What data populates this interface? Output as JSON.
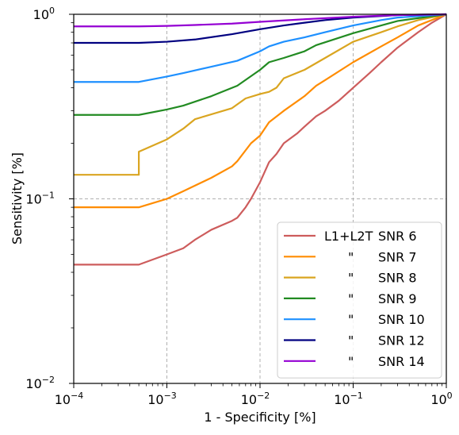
{
  "chart_data": {
    "type": "line",
    "xlabel": "1 - Specificity [%]",
    "ylabel": "Sensitivity [%]",
    "xscale": "log",
    "yscale": "log",
    "xlim": [
      0.0001,
      1
    ],
    "ylim": [
      0.01,
      1
    ],
    "grid": "major, dashed",
    "legend_position": "lower-right",
    "x_ticks": [
      {
        "value": 0.0001,
        "label": "10^-4"
      },
      {
        "value": 0.001,
        "label": "10^-3"
      },
      {
        "value": 0.01,
        "label": "10^-2"
      },
      {
        "value": 0.1,
        "label": "10^-1"
      },
      {
        "value": 1,
        "label": "10^0"
      }
    ],
    "y_ticks": [
      {
        "value": 0.01,
        "label": "10^-2"
      },
      {
        "value": 0.1,
        "label": "10^-1"
      },
      {
        "value": 1,
        "label": "10^0"
      }
    ],
    "series": [
      {
        "name": "L1+L2T  SNR 6",
        "legend_prefix": "L1+L2T",
        "legend_snr": "SNR 6",
        "color": "#cd5c5c",
        "points": [
          [
            0.0001,
            0.044
          ],
          [
            0.0005,
            0.044
          ],
          [
            0.001,
            0.05
          ],
          [
            0.0015,
            0.054
          ],
          [
            0.002,
            0.06
          ],
          [
            0.003,
            0.068
          ],
          [
            0.005,
            0.076
          ],
          [
            0.0057,
            0.079
          ],
          [
            0.007,
            0.09
          ],
          [
            0.008,
            0.1
          ],
          [
            0.01,
            0.123
          ],
          [
            0.0125,
            0.158
          ],
          [
            0.015,
            0.175
          ],
          [
            0.018,
            0.2
          ],
          [
            0.025,
            0.226
          ],
          [
            0.03,
            0.246
          ],
          [
            0.04,
            0.28
          ],
          [
            0.05,
            0.3
          ],
          [
            0.07,
            0.34
          ],
          [
            0.1,
            0.4
          ],
          [
            0.15,
            0.48
          ],
          [
            0.2,
            0.55
          ],
          [
            0.3,
            0.66
          ],
          [
            0.5,
            0.8
          ],
          [
            0.7,
            0.9
          ],
          [
            1,
            1
          ]
        ]
      },
      {
        "name": "SNR 7",
        "legend_prefix": "\"",
        "legend_snr": "SNR 7",
        "color": "#ff8c00",
        "points": [
          [
            0.0001,
            0.09
          ],
          [
            0.0005,
            0.09
          ],
          [
            0.001,
            0.1
          ],
          [
            0.0015,
            0.11
          ],
          [
            0.003,
            0.13
          ],
          [
            0.005,
            0.15
          ],
          [
            0.0057,
            0.16
          ],
          [
            0.008,
            0.2
          ],
          [
            0.01,
            0.22
          ],
          [
            0.0125,
            0.26
          ],
          [
            0.018,
            0.3
          ],
          [
            0.03,
            0.36
          ],
          [
            0.04,
            0.41
          ],
          [
            0.05,
            0.44
          ],
          [
            0.1,
            0.55
          ],
          [
            0.2,
            0.67
          ],
          [
            0.3,
            0.75
          ],
          [
            0.5,
            0.87
          ],
          [
            1,
            1
          ]
        ]
      },
      {
        "name": "SNR 8",
        "legend_prefix": "\"",
        "legend_snr": "SNR 8",
        "color": "#daa520",
        "points": [
          [
            0.0001,
            0.135
          ],
          [
            0.0005,
            0.135
          ],
          [
            0.0005,
            0.18
          ],
          [
            0.001,
            0.21
          ],
          [
            0.0015,
            0.24
          ],
          [
            0.002,
            0.27
          ],
          [
            0.005,
            0.31
          ],
          [
            0.007,
            0.35
          ],
          [
            0.01,
            0.37
          ],
          [
            0.0125,
            0.38
          ],
          [
            0.015,
            0.4
          ],
          [
            0.018,
            0.45
          ],
          [
            0.03,
            0.5
          ],
          [
            0.05,
            0.58
          ],
          [
            0.1,
            0.71
          ],
          [
            0.2,
            0.8
          ],
          [
            0.3,
            0.86
          ],
          [
            0.5,
            0.93
          ],
          [
            1,
            1
          ]
        ]
      },
      {
        "name": "SNR 9",
        "legend_prefix": "\"",
        "legend_snr": "SNR 9",
        "color": "#228b22",
        "points": [
          [
            0.0001,
            0.285
          ],
          [
            0.0005,
            0.285
          ],
          [
            0.001,
            0.305
          ],
          [
            0.0015,
            0.32
          ],
          [
            0.003,
            0.36
          ],
          [
            0.0057,
            0.41
          ],
          [
            0.01,
            0.5
          ],
          [
            0.0125,
            0.55
          ],
          [
            0.018,
            0.58
          ],
          [
            0.03,
            0.63
          ],
          [
            0.04,
            0.68
          ],
          [
            0.1,
            0.79
          ],
          [
            0.2,
            0.87
          ],
          [
            0.3,
            0.92
          ],
          [
            1,
            1
          ]
        ]
      },
      {
        "name": "SNR 10",
        "legend_prefix": "\"",
        "legend_snr": "SNR 10",
        "color": "#1e90ff",
        "points": [
          [
            0.0001,
            0.43
          ],
          [
            0.0005,
            0.43
          ],
          [
            0.001,
            0.46
          ],
          [
            0.0015,
            0.48
          ],
          [
            0.003,
            0.52
          ],
          [
            0.0057,
            0.56
          ],
          [
            0.01,
            0.63
          ],
          [
            0.0125,
            0.67
          ],
          [
            0.018,
            0.71
          ],
          [
            0.03,
            0.75
          ],
          [
            0.05,
            0.8
          ],
          [
            0.1,
            0.87
          ],
          [
            0.2,
            0.93
          ],
          [
            0.3,
            0.96
          ],
          [
            1,
            1
          ]
        ]
      },
      {
        "name": "SNR 12",
        "legend_prefix": "\"",
        "legend_snr": "SNR 12",
        "color": "#000080",
        "points": [
          [
            0.0001,
            0.7
          ],
          [
            0.0005,
            0.7
          ],
          [
            0.001,
            0.71
          ],
          [
            0.002,
            0.73
          ],
          [
            0.005,
            0.78
          ],
          [
            0.01,
            0.83
          ],
          [
            0.018,
            0.87
          ],
          [
            0.03,
            0.9
          ],
          [
            0.05,
            0.93
          ],
          [
            0.1,
            0.96
          ],
          [
            0.3,
            0.99
          ],
          [
            1,
            1
          ]
        ]
      },
      {
        "name": "SNR 14",
        "legend_prefix": "\"",
        "legend_snr": "SNR 14",
        "color": "#9400d3",
        "points": [
          [
            0.0001,
            0.86
          ],
          [
            0.0005,
            0.86
          ],
          [
            0.001,
            0.865
          ],
          [
            0.002,
            0.875
          ],
          [
            0.005,
            0.89
          ],
          [
            0.01,
            0.91
          ],
          [
            0.03,
            0.94
          ],
          [
            0.1,
            0.97
          ],
          [
            0.3,
            0.99
          ],
          [
            1,
            1
          ]
        ]
      }
    ]
  }
}
